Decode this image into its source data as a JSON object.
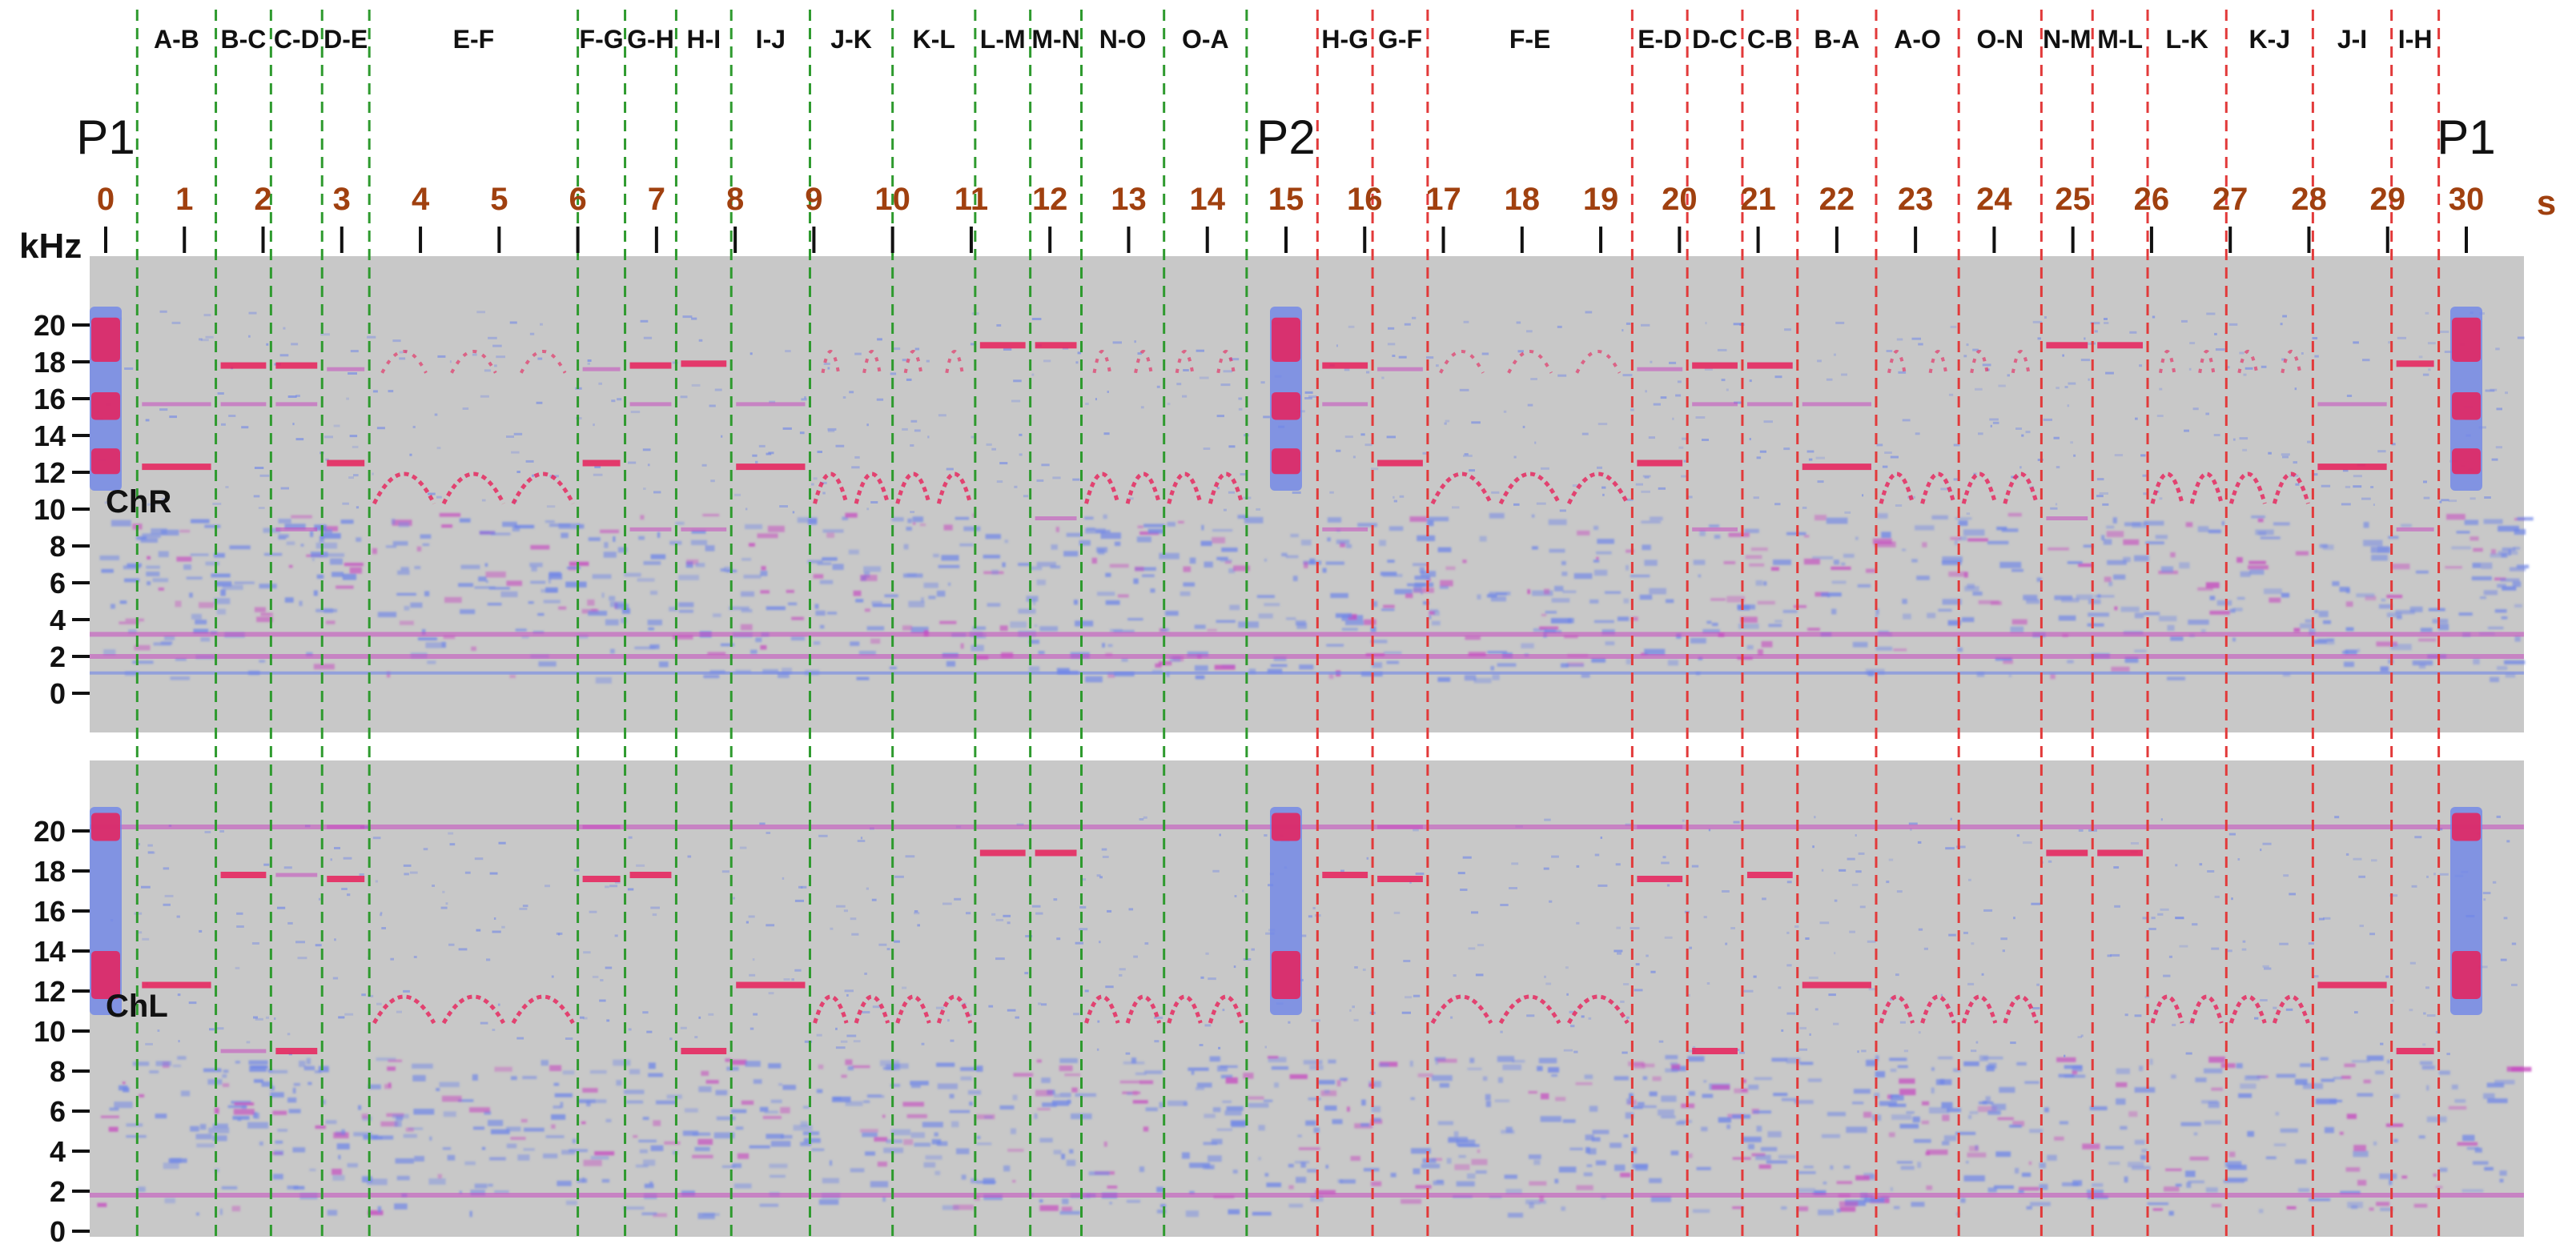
{
  "colors": {
    "panel_bg": "#c8c8c8",
    "noise_blue": "#6f86e8",
    "noise_magenta": "#c64bc0",
    "hot_red": "#e8205a",
    "forward_divider": "#2e9a2e",
    "return_divider": "#e23a3a",
    "time_label": "#a0400f"
  },
  "chart_data": {
    "type": "heatmap",
    "title": "",
    "x_unit": "s",
    "y_unit": "kHz",
    "xlim": [
      0,
      30
    ],
    "ylim": [
      0,
      22
    ],
    "time_ticks": [
      0,
      1,
      2,
      3,
      4,
      5,
      6,
      7,
      8,
      9,
      10,
      11,
      12,
      13,
      14,
      15,
      16,
      17,
      18,
      19,
      20,
      21,
      22,
      23,
      24,
      25,
      26,
      27,
      28,
      29,
      30
    ],
    "freq_ticks": [
      0,
      2,
      4,
      6,
      8,
      10,
      12,
      14,
      16,
      18,
      20
    ],
    "markers": [
      {
        "label": "P1",
        "t": 0
      },
      {
        "label": "P2",
        "t": 15
      },
      {
        "label": "P1",
        "t": 30
      }
    ],
    "segments": [
      {
        "label": "A-B",
        "t0": 0.4,
        "t1": 1.4,
        "dir": "fwd",
        "tones": [
          12.3,
          15.7
        ],
        "tonesL": [
          12.3
        ]
      },
      {
        "label": "B-C",
        "t0": 1.4,
        "t1": 2.1,
        "dir": "fwd",
        "tones": [
          17.8,
          15.7
        ],
        "tonesL": [
          17.8,
          9
        ]
      },
      {
        "label": "C-D",
        "t0": 2.1,
        "t1": 2.75,
        "dir": "fwd",
        "tones": [
          17.8,
          15.7,
          8.9
        ],
        "tonesL": [
          9,
          17.8
        ]
      },
      {
        "label": "D-E",
        "t0": 2.75,
        "t1": 3.35,
        "dir": "fwd",
        "tones": [
          12.5,
          17.6
        ],
        "tonesL": [
          17.6,
          20.2
        ]
      },
      {
        "label": "E-F",
        "t0": 3.35,
        "t1": 6.0,
        "dir": "fwd",
        "arcs": true,
        "tones": [],
        "tonesL": []
      },
      {
        "label": "F-G",
        "t0": 6.0,
        "t1": 6.6,
        "dir": "fwd",
        "tones": [
          12.5,
          17.6
        ],
        "tonesL": [
          17.6,
          20.2
        ]
      },
      {
        "label": "G-H",
        "t0": 6.6,
        "t1": 7.25,
        "dir": "fwd",
        "tones": [
          17.8,
          15.7,
          8.9
        ],
        "tonesL": [
          17.8
        ]
      },
      {
        "label": "H-I",
        "t0": 7.25,
        "t1": 7.95,
        "dir": "fwd",
        "tones": [
          17.9,
          8.9
        ],
        "tonesL": [
          9
        ]
      },
      {
        "label": "I-J",
        "t0": 7.95,
        "t1": 8.95,
        "dir": "fwd",
        "tones": [
          12.3,
          15.7
        ],
        "tonesL": [
          12.3
        ]
      },
      {
        "label": "J-K",
        "t0": 8.95,
        "t1": 10.0,
        "dir": "fwd",
        "arcs": true,
        "tones": [],
        "tonesL": []
      },
      {
        "label": "K-L",
        "t0": 10.0,
        "t1": 11.05,
        "dir": "fwd",
        "arcs": true,
        "tones": [],
        "tonesL": []
      },
      {
        "label": "L-M",
        "t0": 11.05,
        "t1": 11.75,
        "dir": "fwd",
        "tones": [
          18.9
        ],
        "tonesL": [
          18.9
        ]
      },
      {
        "label": "M-N",
        "t0": 11.75,
        "t1": 12.4,
        "dir": "fwd",
        "tones": [
          18.9,
          9.5
        ],
        "tonesL": [
          18.9
        ]
      },
      {
        "label": "N-O",
        "t0": 12.4,
        "t1": 13.45,
        "dir": "fwd",
        "arcs": true,
        "tones": [],
        "tonesL": []
      },
      {
        "label": "O-A",
        "t0": 13.45,
        "t1": 14.5,
        "dir": "fwd",
        "arcs": true,
        "tones": [],
        "tonesL": []
      },
      {
        "label": "H-G",
        "t0": 15.4,
        "t1": 16.1,
        "dir": "ret",
        "tones": [
          17.8,
          15.7,
          8.9
        ],
        "tonesL": [
          17.8
        ]
      },
      {
        "label": "G-F",
        "t0": 16.1,
        "t1": 16.8,
        "dir": "ret",
        "tones": [
          12.5,
          17.6
        ],
        "tonesL": [
          17.6,
          20.2
        ]
      },
      {
        "label": "F-E",
        "t0": 16.8,
        "t1": 19.4,
        "dir": "ret",
        "arcs": true,
        "tones": [],
        "tonesL": []
      },
      {
        "label": "E-D",
        "t0": 19.4,
        "t1": 20.1,
        "dir": "ret",
        "tones": [
          12.5,
          17.6
        ],
        "tonesL": [
          17.6,
          20.2
        ]
      },
      {
        "label": "D-C",
        "t0": 20.1,
        "t1": 20.8,
        "dir": "ret",
        "tones": [
          17.8,
          15.7,
          8.9
        ],
        "tonesL": [
          9
        ]
      },
      {
        "label": "C-B",
        "t0": 20.8,
        "t1": 21.5,
        "dir": "ret",
        "tones": [
          17.8,
          15.7
        ],
        "tonesL": [
          17.8
        ]
      },
      {
        "label": "B-A",
        "t0": 21.5,
        "t1": 22.5,
        "dir": "ret",
        "tones": [
          12.3,
          15.7
        ],
        "tonesL": [
          12.3
        ]
      },
      {
        "label": "A-O",
        "t0": 22.5,
        "t1": 23.55,
        "dir": "ret",
        "arcs": true,
        "tones": [],
        "tonesL": []
      },
      {
        "label": "O-N",
        "t0": 23.55,
        "t1": 24.6,
        "dir": "ret",
        "arcs": true,
        "tones": [],
        "tonesL": []
      },
      {
        "label": "N-M",
        "t0": 24.6,
        "t1": 25.25,
        "dir": "ret",
        "tones": [
          18.9,
          9.5
        ],
        "tonesL": [
          18.9
        ]
      },
      {
        "label": "M-L",
        "t0": 25.25,
        "t1": 25.95,
        "dir": "ret",
        "tones": [
          18.9
        ],
        "tonesL": [
          18.9
        ]
      },
      {
        "label": "L-K",
        "t0": 25.95,
        "t1": 26.95,
        "dir": "ret",
        "arcs": true,
        "tones": [],
        "tonesL": []
      },
      {
        "label": "K-J",
        "t0": 26.95,
        "t1": 28.05,
        "dir": "ret",
        "arcs": true,
        "tones": [],
        "tonesL": []
      },
      {
        "label": "J-I",
        "t0": 28.05,
        "t1": 29.05,
        "dir": "ret",
        "tones": [
          12.3,
          15.7
        ],
        "tonesL": [
          12.3
        ]
      },
      {
        "label": "I-H",
        "t0": 29.05,
        "t1": 29.65,
        "dir": "ret",
        "tones": [
          17.9,
          8.9
        ],
        "tonesL": [
          9
        ]
      }
    ],
    "channels": [
      {
        "name": "ChR",
        "persistent_lines_khz": [
          3.2,
          2.0
        ]
      },
      {
        "name": "ChL",
        "persistent_lines_khz": [
          1.8,
          20.2
        ]
      }
    ]
  }
}
